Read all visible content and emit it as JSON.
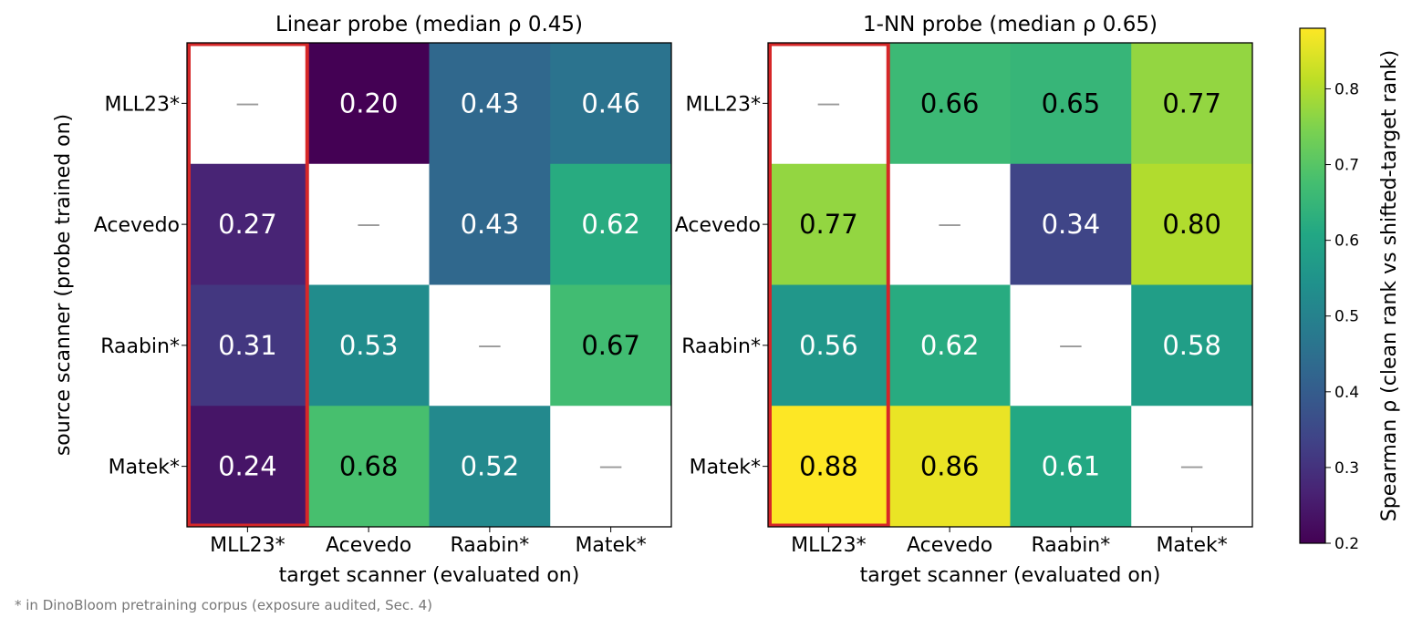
{
  "chart_data": [
    {
      "type": "heatmap",
      "title": "Linear probe  (median ρ 0.45)",
      "xlabel": "target scanner (evaluated on)",
      "ylabel": "source scanner (probe trained on)",
      "x_categories": [
        "MLL23*",
        "Acevedo",
        "Raabin*",
        "Matek*"
      ],
      "y_categories": [
        "MLL23*",
        "Acevedo",
        "Raabin*",
        "Matek*"
      ],
      "values": [
        [
          null,
          0.2,
          0.43,
          0.46
        ],
        [
          0.27,
          null,
          0.43,
          0.62
        ],
        [
          0.31,
          0.53,
          null,
          0.67
        ],
        [
          0.24,
          0.68,
          0.52,
          null
        ]
      ],
      "labels": [
        [
          "—",
          "0.20",
          "0.43",
          "0.46"
        ],
        [
          "0.27",
          "—",
          "0.43",
          "0.62"
        ],
        [
          "0.31",
          "0.53",
          "—",
          "0.67"
        ],
        [
          "0.24",
          "0.68",
          "0.52",
          "—"
        ]
      ],
      "highlight_column": 0,
      "highlight_color": "#d62728"
    },
    {
      "type": "heatmap",
      "title": "1-NN probe  (median ρ 0.65)",
      "xlabel": "target scanner (evaluated on)",
      "x_categories": [
        "MLL23*",
        "Acevedo",
        "Raabin*",
        "Matek*"
      ],
      "y_categories": [
        "MLL23*",
        "Acevedo",
        "Raabin*",
        "Matek*"
      ],
      "values": [
        [
          null,
          0.66,
          0.65,
          0.77
        ],
        [
          0.77,
          null,
          0.34,
          0.8
        ],
        [
          0.56,
          0.62,
          null,
          0.58
        ],
        [
          0.88,
          0.86,
          0.61,
          null
        ]
      ],
      "labels": [
        [
          "—",
          "0.66",
          "0.65",
          "0.77"
        ],
        [
          "0.77",
          "—",
          "0.34",
          "0.80"
        ],
        [
          "0.56",
          "0.62",
          "—",
          "0.58"
        ],
        [
          "0.88",
          "0.86",
          "0.61",
          "—"
        ]
      ],
      "highlight_column": 0,
      "highlight_color": "#d62728"
    }
  ],
  "colorbar": {
    "label": "Spearman ρ (clean rank vs shifted-target rank)",
    "colormap": "viridis",
    "vmin": 0.2,
    "vmax": 0.88,
    "ticks": [
      0.2,
      0.3,
      0.4,
      0.5,
      0.6,
      0.7,
      0.8
    ],
    "tick_labels": [
      "0.2",
      "0.3",
      "0.4",
      "0.5",
      "0.6",
      "0.7",
      "0.8"
    ]
  },
  "footnote": "* in DinoBloom pretraining corpus (exposure audited, Sec. 4)"
}
